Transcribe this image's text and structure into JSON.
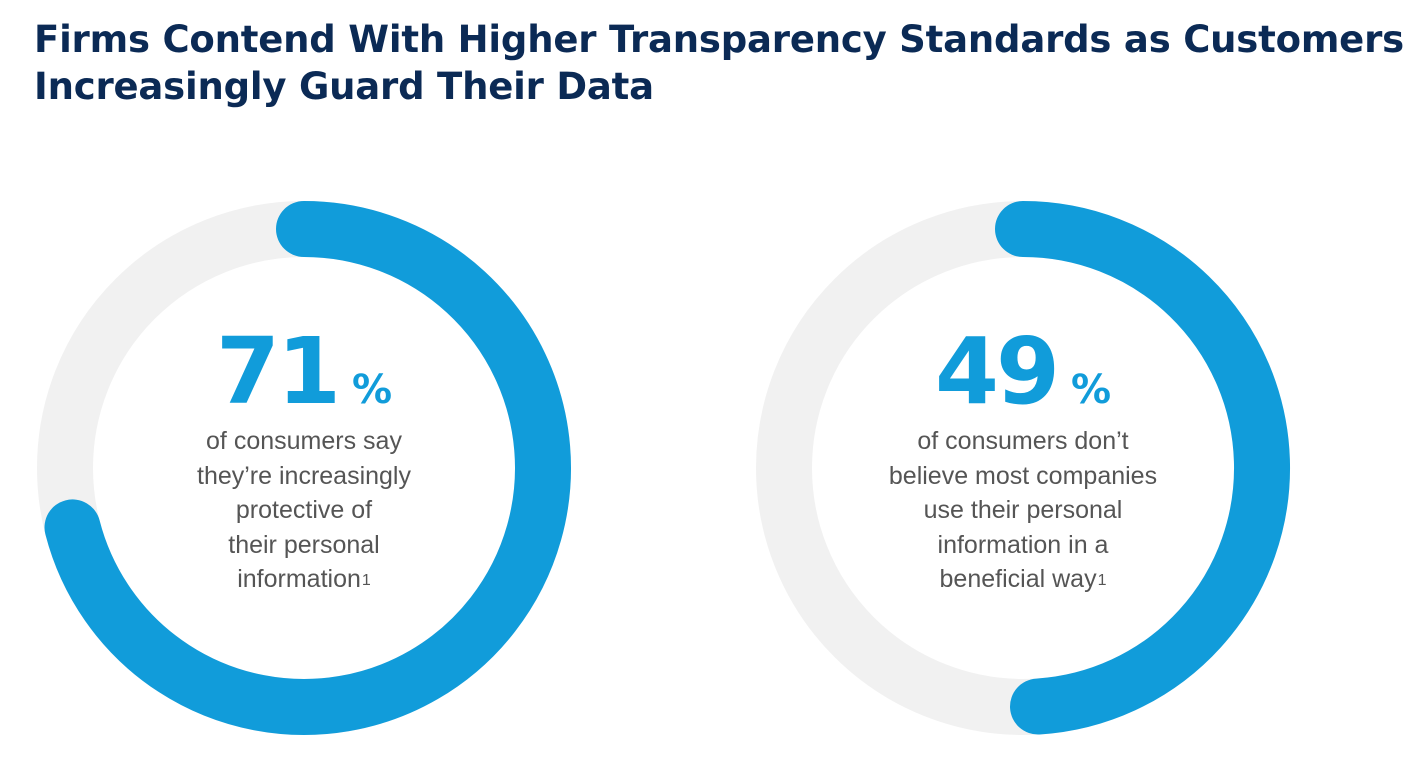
{
  "title": "Firms Contend With Higher Transparency Standards as Customers Increasingly Guard Their Data",
  "colors": {
    "title": "#0b2a55",
    "arc": "#119cda",
    "track": "#f1f1f1",
    "text": "#555555"
  },
  "chart_data": [
    {
      "type": "pie",
      "value": 71,
      "max": 100,
      "value_label": "71",
      "unit": "%",
      "description": "of consumers say\nthey’re increasingly\nprotective of\ntheir personal\ninformation",
      "footnote": "1"
    },
    {
      "type": "pie",
      "value": 49,
      "max": 100,
      "value_label": "49",
      "unit": "%",
      "description": "of consumers don’t\nbelieve most companies\nuse their personal\ninformation in a\nbeneficial way",
      "footnote": "1"
    }
  ]
}
